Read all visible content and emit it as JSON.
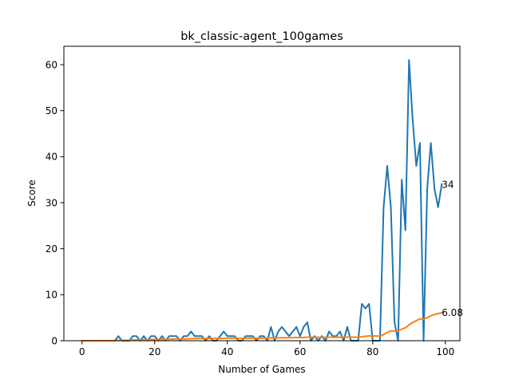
{
  "chart_data": {
    "type": "line",
    "title": "bk_classic-agent_100games",
    "xlabel": "Number of Games",
    "ylabel": "Score",
    "xlim": [
      -5,
      104
    ],
    "ylim": [
      0,
      64
    ],
    "xticks": [
      0,
      20,
      40,
      60,
      80,
      100
    ],
    "yticks": [
      0,
      10,
      20,
      30,
      40,
      50,
      60
    ],
    "grid": false,
    "series": [
      {
        "color": "#1f77b4",
        "x": [
          0,
          1,
          2,
          3,
          4,
          5,
          6,
          7,
          8,
          9,
          10,
          11,
          12,
          13,
          14,
          15,
          16,
          17,
          18,
          19,
          20,
          21,
          22,
          23,
          24,
          25,
          26,
          27,
          28,
          29,
          30,
          31,
          32,
          33,
          34,
          35,
          36,
          37,
          38,
          39,
          40,
          41,
          42,
          43,
          44,
          45,
          46,
          47,
          48,
          49,
          50,
          51,
          52,
          53,
          54,
          55,
          56,
          57,
          58,
          59,
          60,
          61,
          62,
          63,
          64,
          65,
          66,
          67,
          68,
          69,
          70,
          71,
          72,
          73,
          74,
          75,
          76,
          77,
          78,
          79,
          80,
          81,
          82,
          83,
          84,
          85,
          86,
          87,
          88,
          89,
          90,
          91,
          92,
          93,
          94,
          95,
          96,
          97,
          98,
          99
        ],
        "values": [
          0,
          0,
          0,
          0,
          0,
          0,
          0,
          0,
          0,
          0,
          1,
          0,
          0,
          0,
          1,
          1,
          0,
          1,
          0,
          1,
          1,
          0,
          1,
          0,
          1,
          1,
          1,
          0,
          1,
          1,
          2,
          1,
          1,
          1,
          0,
          1,
          0,
          0,
          1,
          2,
          1,
          1,
          1,
          0,
          0,
          1,
          1,
          1,
          0,
          1,
          1,
          0,
          3,
          0,
          2,
          3,
          2,
          1,
          2,
          3,
          1,
          3,
          4,
          0,
          1,
          0,
          1,
          0,
          2,
          1,
          1,
          2,
          0,
          3,
          0,
          0,
          0,
          8,
          7,
          8,
          0,
          0,
          0,
          29,
          38,
          29,
          4,
          0,
          35,
          24,
          61,
          48,
          38,
          43,
          0,
          33,
          43,
          33,
          29,
          34
        ]
      },
      {
        "color": "#ff7f0e",
        "x": [
          0,
          1,
          2,
          3,
          4,
          5,
          6,
          7,
          8,
          9,
          10,
          11,
          12,
          13,
          14,
          15,
          16,
          17,
          18,
          19,
          20,
          21,
          22,
          23,
          24,
          25,
          26,
          27,
          28,
          29,
          30,
          31,
          32,
          33,
          34,
          35,
          36,
          37,
          38,
          39,
          40,
          41,
          42,
          43,
          44,
          45,
          46,
          47,
          48,
          49,
          50,
          51,
          52,
          53,
          54,
          55,
          56,
          57,
          58,
          59,
          60,
          61,
          62,
          63,
          64,
          65,
          66,
          67,
          68,
          69,
          70,
          71,
          72,
          73,
          74,
          75,
          76,
          77,
          78,
          79,
          80,
          81,
          82,
          83,
          84,
          85,
          86,
          87,
          88,
          89,
          90,
          91,
          92,
          93,
          94,
          95,
          96,
          97,
          98,
          99
        ],
        "values": [
          0,
          0,
          0,
          0,
          0,
          0,
          0,
          0,
          0,
          0,
          0.09,
          0.08,
          0.08,
          0.08,
          0.13,
          0.19,
          0.18,
          0.22,
          0.21,
          0.25,
          0.29,
          0.27,
          0.3,
          0.29,
          0.32,
          0.35,
          0.37,
          0.36,
          0.38,
          0.4,
          0.45,
          0.47,
          0.48,
          0.5,
          0.48,
          0.5,
          0.49,
          0.47,
          0.49,
          0.53,
          0.54,
          0.55,
          0.56,
          0.55,
          0.53,
          0.54,
          0.55,
          0.56,
          0.55,
          0.56,
          0.57,
          0.56,
          0.6,
          0.59,
          0.61,
          0.64,
          0.66,
          0.66,
          0.68,
          0.7,
          0.7,
          0.72,
          0.76,
          0.75,
          0.75,
          0.74,
          0.74,
          0.73,
          0.75,
          0.75,
          0.76,
          0.77,
          0.76,
          0.79,
          0.78,
          0.77,
          0.76,
          0.86,
          0.95,
          1.04,
          1.03,
          1.01,
          1.0,
          1.34,
          1.8,
          2.13,
          2.15,
          2.13,
          2.53,
          2.8,
          3.45,
          3.97,
          4.35,
          4.75,
          4.69,
          5.0,
          5.4,
          5.7,
          5.9,
          6.08
        ]
      }
    ],
    "annotations": [
      {
        "text": "34",
        "x": 99,
        "y": 34
      },
      {
        "text": "6.08",
        "x": 99,
        "y": 6.08
      }
    ]
  }
}
